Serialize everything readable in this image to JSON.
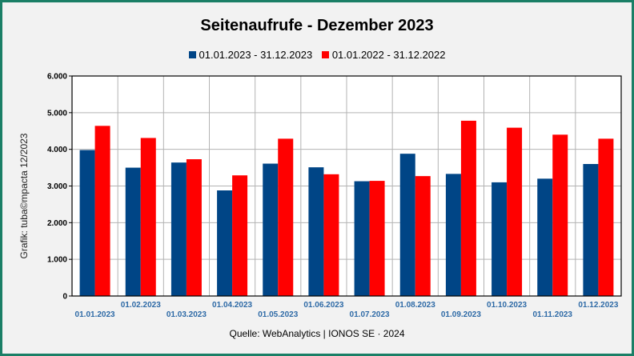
{
  "chart_data": {
    "type": "bar",
    "title": "Seitenaufrufe - Dezember 2023",
    "ylabel": "Grafik: tuba©mpacta 12/2023",
    "source": "Quelle: WebAnalytics | IONOS SE · 2024",
    "categories": [
      "01.01.2023",
      "01.02.2023",
      "01.03.2023",
      "01.04.2023",
      "01.05.2023",
      "01.06.2023",
      "01.07.2023",
      "01.08.2023",
      "01.09.2023",
      "01.10.2023",
      "01.11.2023",
      "01.12.2023"
    ],
    "series": [
      {
        "name": "01.01.2023 - 31.12.2023",
        "color": "#004586",
        "values": [
          3980,
          3500,
          3640,
          2880,
          3610,
          3510,
          3130,
          3880,
          3330,
          3100,
          3200,
          3600
        ]
      },
      {
        "name": "01.01.2022 - 31.12.2022",
        "color": "#ff0000",
        "values": [
          4640,
          4310,
          3730,
          3290,
          4290,
          3320,
          3140,
          3270,
          4780,
          4590,
          4400,
          4290
        ]
      }
    ],
    "yticks": [
      "0",
      "1.000",
      "2.000",
      "3.000",
      "4.000",
      "5.000",
      "6.000"
    ],
    "ylim": [
      0,
      6000
    ],
    "grid": true,
    "legend_position": "top-center"
  }
}
